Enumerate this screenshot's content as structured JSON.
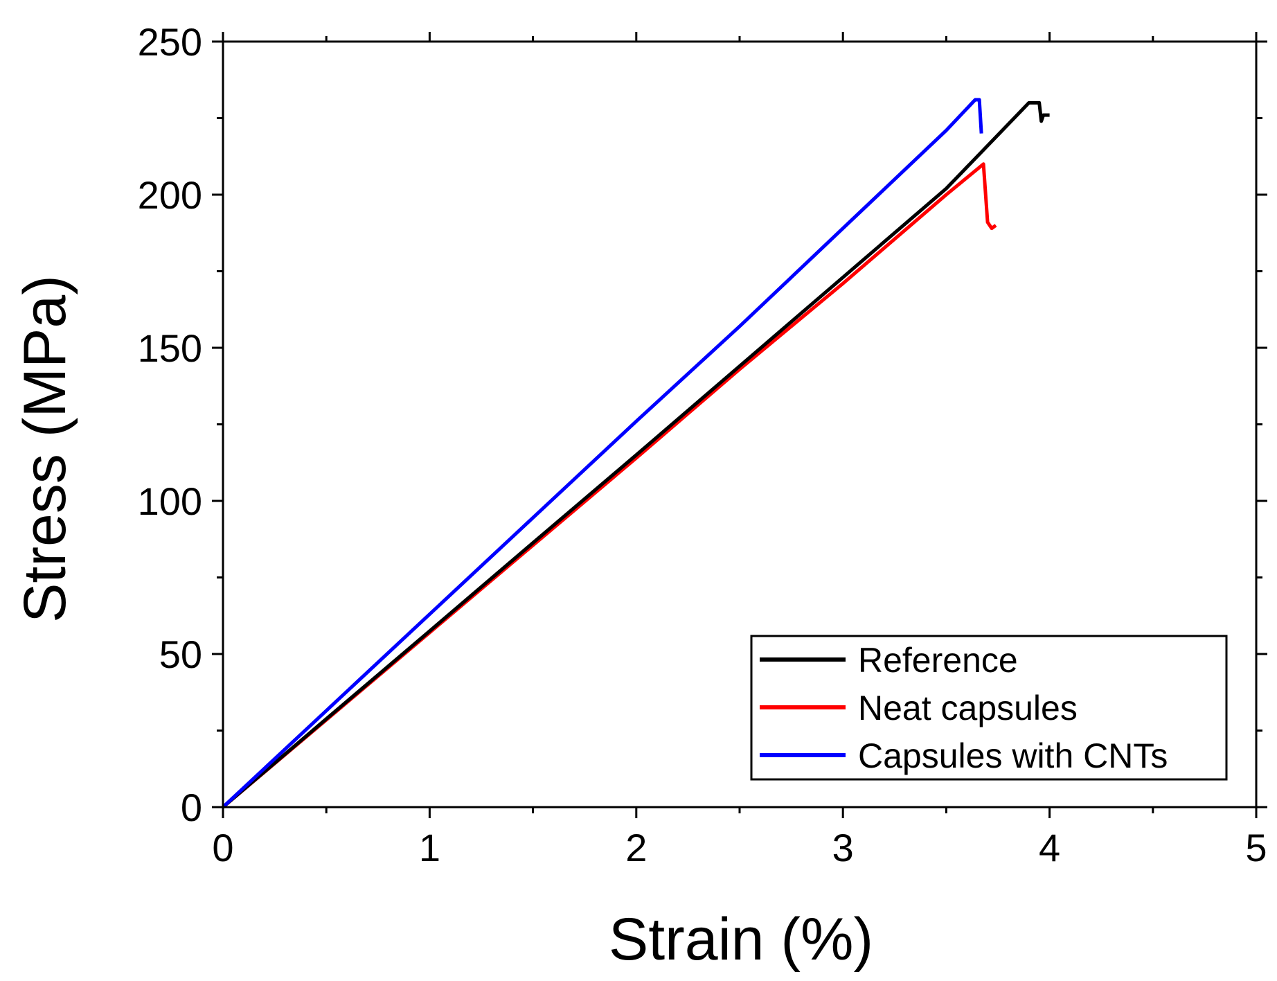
{
  "chart_data": {
    "type": "line",
    "title": "",
    "xlabel": "Strain (%)",
    "ylabel": "Stress (MPa)",
    "xlim": [
      0,
      5
    ],
    "ylim": [
      0,
      250
    ],
    "x_ticks": [
      0,
      1,
      2,
      3,
      4,
      5
    ],
    "y_ticks": [
      0,
      50,
      100,
      150,
      200,
      250
    ],
    "x_minor_ticks": [
      0.5,
      1.5,
      2.5,
      3.5,
      4.5
    ],
    "y_minor_ticks": [
      25,
      75,
      125,
      175,
      225
    ],
    "legend_position": "bottom-right",
    "grid": false,
    "series": [
      {
        "name": "Reference",
        "color": "#000000",
        "x": [
          0,
          0.5,
          1.0,
          1.5,
          2.0,
          2.5,
          3.0,
          3.5,
          3.9,
          3.95,
          3.96,
          3.97,
          4.0
        ],
        "y": [
          0,
          28.8,
          57.5,
          86.3,
          115,
          144,
          173,
          202,
          230,
          230,
          224,
          226,
          226
        ]
      },
      {
        "name": "Neat capsules",
        "color": "#ff0000",
        "x": [
          0,
          0.5,
          1.0,
          1.5,
          2.0,
          2.5,
          3.0,
          3.5,
          3.68,
          3.7,
          3.72,
          3.74
        ],
        "y": [
          0,
          28.5,
          57,
          85.5,
          114,
          143,
          171,
          200,
          210,
          191,
          189,
          190
        ]
      },
      {
        "name": "Capsules with CNTs",
        "color": "#0000ff",
        "x": [
          0,
          0.5,
          1.0,
          1.5,
          2.0,
          2.5,
          3.0,
          3.5,
          3.64,
          3.66,
          3.67
        ],
        "y": [
          0,
          31.5,
          63,
          94.5,
          126,
          157,
          189,
          221,
          231,
          231,
          220
        ]
      }
    ]
  }
}
